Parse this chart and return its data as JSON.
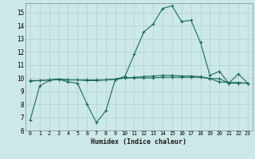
{
  "xlabel": "Humidex (Indice chaleur)",
  "background_color": "#cce8e8",
  "grid_color": "#b8d8d8",
  "line_color": "#1a6b5a",
  "xlim": [
    -0.5,
    23.5
  ],
  "ylim": [
    6,
    15.7
  ],
  "yticks": [
    6,
    7,
    8,
    9,
    10,
    11,
    12,
    13,
    14,
    15
  ],
  "xticks": [
    0,
    1,
    2,
    3,
    4,
    5,
    6,
    7,
    8,
    9,
    10,
    11,
    12,
    13,
    14,
    15,
    16,
    17,
    18,
    19,
    20,
    21,
    22,
    23
  ],
  "series1_x": [
    0,
    1,
    2,
    3,
    4,
    5,
    6,
    7,
    8,
    9,
    10,
    11,
    12,
    13,
    14,
    15,
    16,
    17,
    18,
    19,
    20,
    21,
    22,
    23
  ],
  "series1_y": [
    6.8,
    9.4,
    9.8,
    9.9,
    9.7,
    9.6,
    8.0,
    6.6,
    7.5,
    9.9,
    10.1,
    11.8,
    13.5,
    14.1,
    15.3,
    15.5,
    14.3,
    14.4,
    12.7,
    10.2,
    10.5,
    9.6,
    10.3,
    9.6
  ],
  "series2_x": [
    0,
    1,
    2,
    3,
    4,
    5,
    6,
    7,
    8,
    9,
    10,
    11,
    12,
    13,
    14,
    15,
    16,
    17,
    18,
    19,
    20,
    21,
    22,
    23
  ],
  "series2_y": [
    9.8,
    9.8,
    9.85,
    9.9,
    9.85,
    9.85,
    9.85,
    9.85,
    9.85,
    9.9,
    10.0,
    10.0,
    10.0,
    10.0,
    10.05,
    10.05,
    10.05,
    10.05,
    10.05,
    9.95,
    9.95,
    9.6,
    9.6,
    9.6
  ],
  "series3_x": [
    0,
    1,
    2,
    3,
    4,
    5,
    6,
    7,
    8,
    9,
    10,
    11,
    12,
    13,
    14,
    15,
    16,
    17,
    18,
    19,
    20,
    21,
    22,
    23
  ],
  "series3_y": [
    9.75,
    9.8,
    9.85,
    9.9,
    9.85,
    9.85,
    9.8,
    9.8,
    9.85,
    9.9,
    10.0,
    10.05,
    10.1,
    10.15,
    10.2,
    10.2,
    10.15,
    10.15,
    10.1,
    9.95,
    9.7,
    9.65,
    9.65,
    9.6
  ]
}
